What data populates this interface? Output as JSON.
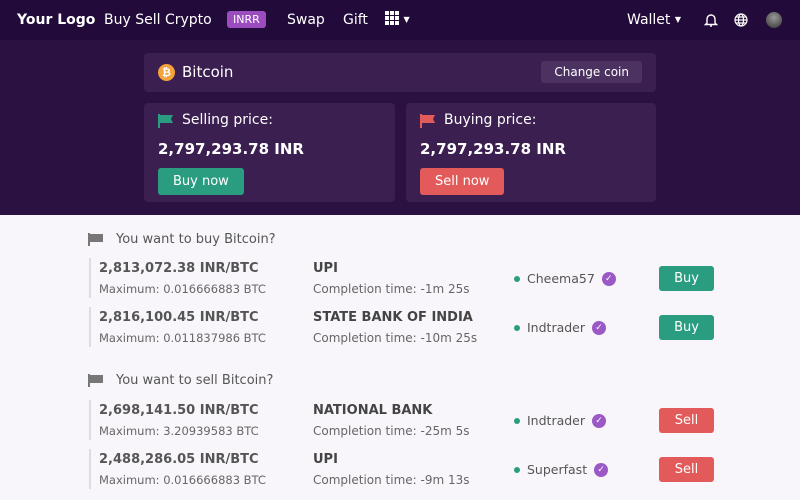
{
  "nav": {
    "logo": "Your Logo",
    "buy_sell": "Buy Sell Crypto",
    "badge": "INRR",
    "swap": "Swap",
    "gift": "Gift",
    "wallet": "Wallet"
  },
  "coin": {
    "name": "Bitcoin",
    "change_label": "Change coin"
  },
  "selling": {
    "label": "Selling price:",
    "value": "2,797,293.78 INR",
    "button": "Buy now"
  },
  "buying": {
    "label": "Buying price:",
    "value": "2,797,293.78 INR",
    "button": "Sell now"
  },
  "colors": {
    "green": "#2a9d80",
    "red": "#e25a5a",
    "purple": "#9b4dbf",
    "nav_bg": "#220b3a"
  },
  "buy_section": {
    "title": "You want to buy Bitcoin?",
    "rows": [
      {
        "price": "2,813,072.38 INR/BTC",
        "max": "Maximum: 0.016666883 BTC",
        "method": "UPI",
        "time": "Completion time: -1m 25s",
        "trader": "Cheema57",
        "action": "Buy"
      },
      {
        "price": "2,816,100.45 INR/BTC",
        "max": "Maximum: 0.011837986 BTC",
        "method": "STATE BANK OF INDIA",
        "time": "Completion time: -10m 25s",
        "trader": "Indtrader",
        "action": "Buy"
      }
    ]
  },
  "sell_section": {
    "title": "You want to sell Bitcoin?",
    "rows": [
      {
        "price": "2,698,141.50 INR/BTC",
        "max": "Maximum: 3.20939583 BTC",
        "method": "NATIONAL BANK",
        "time": "Completion time: -25m 5s",
        "trader": "Indtrader",
        "action": "Sell"
      },
      {
        "price": "2,488,286.05 INR/BTC",
        "max": "Maximum: 0.016666883 BTC",
        "method": "UPI",
        "time": "Completion time: -9m 13s",
        "trader": "Superfast",
        "action": "Sell"
      }
    ]
  }
}
